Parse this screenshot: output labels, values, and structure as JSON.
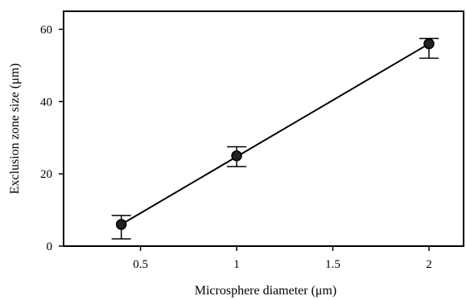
{
  "chart_data": {
    "type": "scatter",
    "title": "",
    "xlabel": "Microsphere diameter (μm)",
    "ylabel": "Exclusion zone size (μm)",
    "x_ticks": [
      {
        "value": 0.5,
        "label": "0.5"
      },
      {
        "value": 1,
        "label": "1"
      },
      {
        "value": 1.5,
        "label": "1.5"
      },
      {
        "value": 2,
        "label": "2"
      }
    ],
    "y_ticks": [
      {
        "value": 0,
        "label": "0"
      },
      {
        "value": 20,
        "label": "20"
      },
      {
        "value": 40,
        "label": "40"
      },
      {
        "value": 60,
        "label": "60"
      }
    ],
    "xlim": [
      0.1,
      2.18
    ],
    "ylim": [
      0,
      65
    ],
    "grid": false,
    "legend": "none",
    "series": [
      {
        "points": [
          {
            "x": 0.4,
            "y": 6,
            "y_low": 2,
            "y_high": 8.5
          },
          {
            "x": 1.0,
            "y": 25,
            "y_low": 22,
            "y_high": 27.5
          },
          {
            "x": 2.0,
            "y": 56,
            "y_low": 52,
            "y_high": 57.5
          }
        ],
        "fit_line": {
          "x": [
            0.4,
            2.0
          ],
          "y": [
            6,
            56
          ]
        },
        "marker_color": "#000000",
        "line_color": "#000000"
      }
    ]
  }
}
